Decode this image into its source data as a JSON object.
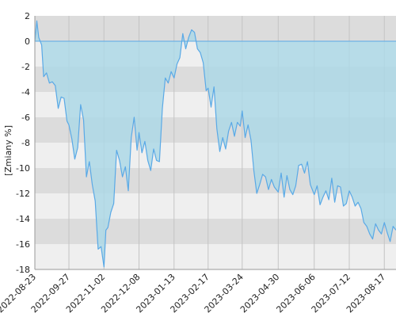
{
  "chart_data": {
    "type": "area",
    "ylabel": "[Zmiany %]",
    "ylim": [
      -18,
      2
    ],
    "yticks": [
      2,
      0,
      -2,
      -4,
      -6,
      -8,
      -10,
      -12,
      -14,
      -16,
      -18
    ],
    "yticks_labels": [
      "2",
      "0",
      "-2",
      "-4",
      "-6",
      "-8",
      "-10",
      "-12",
      "-14",
      "-16",
      "-18"
    ],
    "xlim": [
      "2022-08-23",
      "2023-08-29"
    ],
    "xticks": [
      "2022-08-23",
      "2022-09-27",
      "2022-11-02",
      "2022-12-08",
      "2023-01-13",
      "2023-02-17",
      "2023-03-24",
      "2023-04-30",
      "2023-06-06",
      "2023-07-12",
      "2023-08-17"
    ],
    "grid": "bands",
    "legend": "none",
    "colors": {
      "line": "#5aa9e6",
      "fill": "#add8e6",
      "band_dark": "#dcdcdc",
      "band_light": "#efefef",
      "grid_line": "#c4c4c4",
      "axis": "#9a9a9a"
    },
    "series": [
      {
        "x": [
          "2022-08-23",
          "2022-08-25",
          "2022-08-27",
          "2022-08-30",
          "2022-09-01",
          "2022-09-04",
          "2022-09-07",
          "2022-09-10",
          "2022-09-13",
          "2022-09-16",
          "2022-09-19",
          "2022-09-22",
          "2022-09-25",
          "2022-09-27",
          "2022-09-30",
          "2022-10-03",
          "2022-10-06",
          "2022-10-09",
          "2022-10-12",
          "2022-10-15",
          "2022-10-18",
          "2022-10-21",
          "2022-10-24",
          "2022-10-27",
          "2022-10-30",
          "2022-11-02",
          "2022-11-04",
          "2022-11-06",
          "2022-11-09",
          "2022-11-12",
          "2022-11-15",
          "2022-11-18",
          "2022-11-21",
          "2022-11-24",
          "2022-11-27",
          "2022-11-30",
          "2022-12-03",
          "2022-12-06",
          "2022-12-08",
          "2022-12-11",
          "2022-12-14",
          "2022-12-17",
          "2022-12-20",
          "2022-12-23",
          "2022-12-26",
          "2022-12-29",
          "2023-01-01",
          "2023-01-04",
          "2023-01-07",
          "2023-01-10",
          "2023-01-13",
          "2023-01-16",
          "2023-01-19",
          "2023-01-22",
          "2023-01-25",
          "2023-01-28",
          "2023-01-31",
          "2023-02-03",
          "2023-02-06",
          "2023-02-09",
          "2023-02-12",
          "2023-02-15",
          "2023-02-17",
          "2023-02-20",
          "2023-02-23",
          "2023-02-26",
          "2023-03-01",
          "2023-03-04",
          "2023-03-07",
          "2023-03-10",
          "2023-03-13",
          "2023-03-16",
          "2023-03-19",
          "2023-03-22",
          "2023-03-24",
          "2023-03-27",
          "2023-03-30",
          "2023-04-02",
          "2023-04-05",
          "2023-04-08",
          "2023-04-11",
          "2023-04-14",
          "2023-04-17",
          "2023-04-20",
          "2023-04-23",
          "2023-04-26",
          "2023-04-30",
          "2023-05-03",
          "2023-05-06",
          "2023-05-09",
          "2023-05-12",
          "2023-05-15",
          "2023-05-18",
          "2023-05-21",
          "2023-05-24",
          "2023-05-27",
          "2023-05-30",
          "2023-06-02",
          "2023-06-06",
          "2023-06-09",
          "2023-06-12",
          "2023-06-15",
          "2023-06-18",
          "2023-06-21",
          "2023-06-24",
          "2023-06-27",
          "2023-06-30",
          "2023-07-03",
          "2023-07-06",
          "2023-07-09",
          "2023-07-12",
          "2023-07-15",
          "2023-07-18",
          "2023-07-21",
          "2023-07-24",
          "2023-07-27",
          "2023-07-30",
          "2023-08-02",
          "2023-08-05",
          "2023-08-08",
          "2023-08-11",
          "2023-08-14",
          "2023-08-17",
          "2023-08-20",
          "2023-08-23",
          "2023-08-26",
          "2023-08-29"
        ],
        "y": [
          0.0,
          1.6,
          0.3,
          -0.3,
          -2.8,
          -2.5,
          -3.3,
          -3.2,
          -3.5,
          -5.3,
          -4.4,
          -4.5,
          -6.3,
          -6.6,
          -7.7,
          -9.3,
          -8.4,
          -5.0,
          -6.2,
          -10.7,
          -9.5,
          -11.3,
          -12.6,
          -16.4,
          -16.2,
          -17.8,
          -14.9,
          -14.7,
          -13.5,
          -12.8,
          -8.6,
          -9.4,
          -10.7,
          -9.9,
          -11.8,
          -7.6,
          -6.0,
          -8.6,
          -7.2,
          -8.8,
          -7.9,
          -9.4,
          -10.2,
          -8.5,
          -9.4,
          -9.5,
          -5.3,
          -2.9,
          -3.3,
          -2.4,
          -2.9,
          -1.8,
          -1.3,
          0.6,
          -0.6,
          0.3,
          0.9,
          0.7,
          -0.6,
          -0.9,
          -1.7,
          -3.9,
          -3.7,
          -5.2,
          -3.6,
          -6.9,
          -8.7,
          -7.6,
          -8.5,
          -7.1,
          -6.4,
          -7.5,
          -6.4,
          -6.7,
          -5.5,
          -7.6,
          -6.6,
          -7.8,
          -10.2,
          -12.0,
          -11.3,
          -10.5,
          -10.7,
          -11.7,
          -10.9,
          -11.5,
          -11.9,
          -10.4,
          -12.3,
          -10.6,
          -11.7,
          -12.1,
          -11.4,
          -9.8,
          -9.7,
          -10.4,
          -9.5,
          -11.3,
          -12.1,
          -11.4,
          -12.9,
          -12.3,
          -11.8,
          -12.5,
          -10.8,
          -12.7,
          -11.4,
          -11.5,
          -13.0,
          -12.8,
          -11.8,
          -12.3,
          -13.0,
          -12.7,
          -13.2,
          -14.3,
          -14.6,
          -15.2,
          -15.6,
          -14.4,
          -14.9,
          -15.2,
          -14.3,
          -15.1,
          -15.8,
          -14.6,
          -14.9
        ]
      }
    ]
  }
}
